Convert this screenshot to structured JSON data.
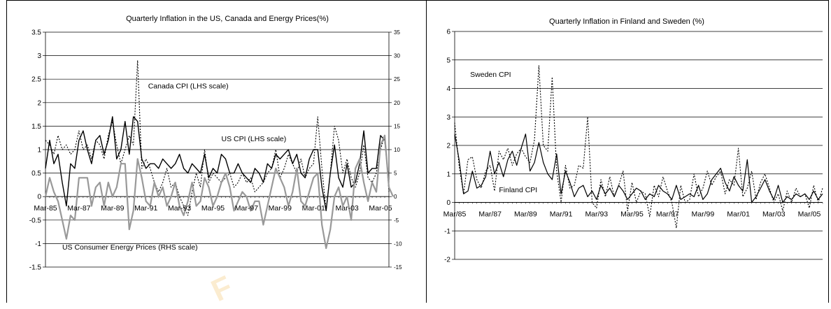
{
  "chart_data": [
    {
      "type": "line",
      "title": "Quarterly Inflation in the US, Canada and Energy Prices(%)",
      "xlabel": "",
      "ylabel": "",
      "left_axis": {
        "ylim": [
          -1.5,
          3.5
        ],
        "ticks": [
          "3.5",
          "3",
          "2.5",
          "2",
          "1.5",
          "1",
          "0.5",
          "0",
          "-0.5",
          "-1",
          "-1.5"
        ]
      },
      "right_axis": {
        "ylim": [
          -15,
          35
        ],
        "ticks": [
          "35",
          "30",
          "25",
          "20",
          "15",
          "10",
          "5",
          "0",
          "-5",
          "-10",
          "-15"
        ]
      },
      "x_tick_labels": [
        "Mar-85",
        "Mar-87",
        "Mar-89",
        "Mar-91",
        "Mar-93",
        "Mar-95",
        "Mar-97",
        "Mar-99",
        "Mar-01",
        "Mar-03",
        "Mar-05"
      ],
      "grid": true,
      "annotations": [
        {
          "id": "canada",
          "text": "Canada CPI (LHS scale)",
          "x": 24.5,
          "y": 2.3
        },
        {
          "id": "us",
          "text": "US CPI (LHS scale)",
          "x": 42,
          "y": 1.18
        },
        {
          "id": "energy",
          "text": "US Consumer Energy Prices (RHS scale)",
          "x": 4,
          "y": -1.13
        }
      ],
      "series": [
        {
          "id": "us_cpi",
          "color": "#000000",
          "style": "solid",
          "width": 1.4,
          "axis": "left",
          "values": [
            0.6,
            1.2,
            0.7,
            0.9,
            0.3,
            -0.2,
            0.7,
            0.6,
            1.2,
            1.4,
            1.0,
            0.7,
            1.2,
            1.3,
            0.9,
            1.2,
            1.7,
            0.8,
            1.0,
            1.6,
            0.9,
            1.7,
            1.6,
            0.8,
            0.6,
            0.7,
            0.7,
            0.6,
            0.8,
            0.7,
            0.6,
            0.7,
            0.9,
            0.6,
            0.5,
            0.7,
            0.6,
            0.5,
            0.9,
            0.4,
            0.6,
            0.5,
            0.9,
            0.8,
            0.5,
            0.5,
            0.7,
            0.5,
            0.4,
            0.3,
            0.6,
            0.5,
            0.3,
            0.7,
            0.6,
            0.9,
            0.8,
            0.9,
            1.0,
            0.7,
            0.9,
            0.5,
            0.4,
            0.8,
            1.0,
            1.0,
            0.2,
            -0.3,
            0.5,
            1.1,
            0.4,
            0.2,
            0.7,
            0.2,
            0.3,
            0.7,
            1.4,
            0.5,
            0.6,
            0.6,
            1.3,
            1.2,
            0.3
          ]
        },
        {
          "id": "canada_cpi",
          "color": "#000000",
          "style": "dotted",
          "width": 1.1,
          "axis": "left",
          "values": [
            1.2,
            1.1,
            0.9,
            1.3,
            1.0,
            1.1,
            0.9,
            1.0,
            1.4,
            1.0,
            1.1,
            0.8,
            1.2,
            1.1,
            0.8,
            1.3,
            1.6,
            1.1,
            0.7,
            1.0,
            1.3,
            1.1,
            2.9,
            0.6,
            0.8,
            0.6,
            0.3,
            0.1,
            0.3,
            0.6,
            0.2,
            0.3,
            0.0,
            -0.2,
            -0.4,
            0.1,
            0.5,
            0.2,
            1.0,
            0.3,
            0.5,
            0.4,
            0.3,
            0.4,
            0.5,
            0.2,
            0.3,
            0.5,
            0.3,
            0.4,
            0.1,
            0.2,
            0.3,
            0.5,
            0.6,
            1.0,
            0.4,
            0.6,
            0.9,
            0.7,
            0.5,
            0.8,
            0.4,
            0.6,
            0.7,
            1.7,
            0.6,
            -0.3,
            0.5,
            1.5,
            1.2,
            0.5,
            0.8,
            0.4,
            0.2,
            0.5,
            1.1,
            0.4,
            0.3,
            0.5,
            1.0,
            1.3,
            0.1
          ]
        },
        {
          "id": "us_energy",
          "color": "#999999",
          "style": "solid",
          "width": 2.2,
          "axis": "right",
          "values": [
            0,
            4,
            1,
            -1,
            -5,
            -9,
            -4,
            -5,
            4,
            4,
            4,
            -2,
            2,
            3,
            -2,
            3,
            0,
            2,
            7,
            7,
            -7,
            -3,
            8,
            4,
            -1,
            -2,
            3,
            0,
            2,
            -2,
            0,
            3,
            -2,
            -4,
            -1,
            3,
            -2,
            -1,
            4,
            2,
            -2,
            0,
            3,
            5,
            2,
            -3,
            -1,
            1,
            0,
            -3,
            -1,
            -1,
            -6,
            -2,
            2,
            6,
            4,
            2,
            -2,
            1,
            6,
            -1,
            -2,
            1,
            4,
            5,
            -6,
            -11,
            -7,
            0,
            2,
            -2,
            0,
            -5,
            6,
            8,
            3,
            -1,
            3,
            1,
            11,
            13,
            2,
            0
          ]
        }
      ]
    },
    {
      "type": "line",
      "title": "Quarterly Inflation in Finland and Sweden (%)",
      "xlabel": "",
      "ylabel": "",
      "ylim": [
        -2,
        6
      ],
      "y_ticks": [
        "6",
        "5",
        "4",
        "3",
        "2",
        "1",
        "0",
        "-1",
        "-2"
      ],
      "x_tick_labels": [
        "Mar/85",
        "Mar/87",
        "Mar/89",
        "Mar/91",
        "Mar/93",
        "Mar/95",
        "Mar/97",
        "Mar/99",
        "Mar/01",
        "Mar/03",
        "Mar/05"
      ],
      "grid": true,
      "annotations": [
        {
          "id": "sweden",
          "text": "Sweden CPI",
          "x": 3.5,
          "y": 4.4
        },
        {
          "id": "finland",
          "text": "Finland CPI",
          "x": 10,
          "y": 0.35
        }
      ],
      "series": [
        {
          "id": "finland_cpi",
          "color": "#000000",
          "style": "solid",
          "width": 1.2,
          "values": [
            2.4,
            1.5,
            0.3,
            0.4,
            1.1,
            0.5,
            0.6,
            0.9,
            1.8,
            1.0,
            1.4,
            0.9,
            1.5,
            1.8,
            1.3,
            1.9,
            2.4,
            1.1,
            1.4,
            2.1,
            1.4,
            1.0,
            0.8,
            1.7,
            0.3,
            1.1,
            0.7,
            0.2,
            0.5,
            0.6,
            0.2,
            0.4,
            0.1,
            0.6,
            0.3,
            0.5,
            0.2,
            0.6,
            0.4,
            0.1,
            0.3,
            0.5,
            0.4,
            0.1,
            0.3,
            0.2,
            0.6,
            0.4,
            0.3,
            0.1,
            0.6,
            0.1,
            0.2,
            0.3,
            0.2,
            0.6,
            0.1,
            0.3,
            0.8,
            1.0,
            1.2,
            0.7,
            0.4,
            0.9,
            0.6,
            0.4,
            1.5,
            0.0,
            0.2,
            0.5,
            0.8,
            0.4,
            0.1,
            0.6,
            0.0,
            0.2,
            0.1,
            0.3,
            0.2,
            0.3,
            0.1,
            0.4,
            0.1,
            0.3
          ]
        },
        {
          "id": "sweden_cpi",
          "color": "#000000",
          "style": "dotted",
          "width": 1.1,
          "values": [
            2.8,
            1.3,
            0.3,
            1.5,
            1.6,
            0.8,
            0.5,
            1.1,
            1.3,
            0.4,
            1.8,
            1.5,
            1.9,
            1.3,
            1.7,
            1.9,
            1.6,
            1.4,
            2.2,
            4.8,
            2.0,
            1.8,
            4.4,
            1.1,
            0.0,
            1.3,
            0.5,
            0.6,
            1.3,
            1.2,
            3.0,
            0.0,
            -0.2,
            0.8,
            0.2,
            0.9,
            0.2,
            0.6,
            1.1,
            -0.3,
            0.7,
            0.0,
            0.4,
            0.3,
            -0.5,
            0.6,
            0.2,
            0.9,
            0.4,
            0.0,
            -0.9,
            0.6,
            0.0,
            0.1,
            1.0,
            0.2,
            0.5,
            1.1,
            0.6,
            0.9,
            1.1,
            0.3,
            0.8,
            0.6,
            1.9,
            0.2,
            0.5,
            1.1,
            0.1,
            0.7,
            1.0,
            0.5,
            0.0,
            0.3,
            -0.3,
            0.4,
            0.0,
            0.5,
            0.2,
            0.3,
            -0.2,
            0.6,
            0.0,
            0.5
          ]
        }
      ]
    }
  ]
}
